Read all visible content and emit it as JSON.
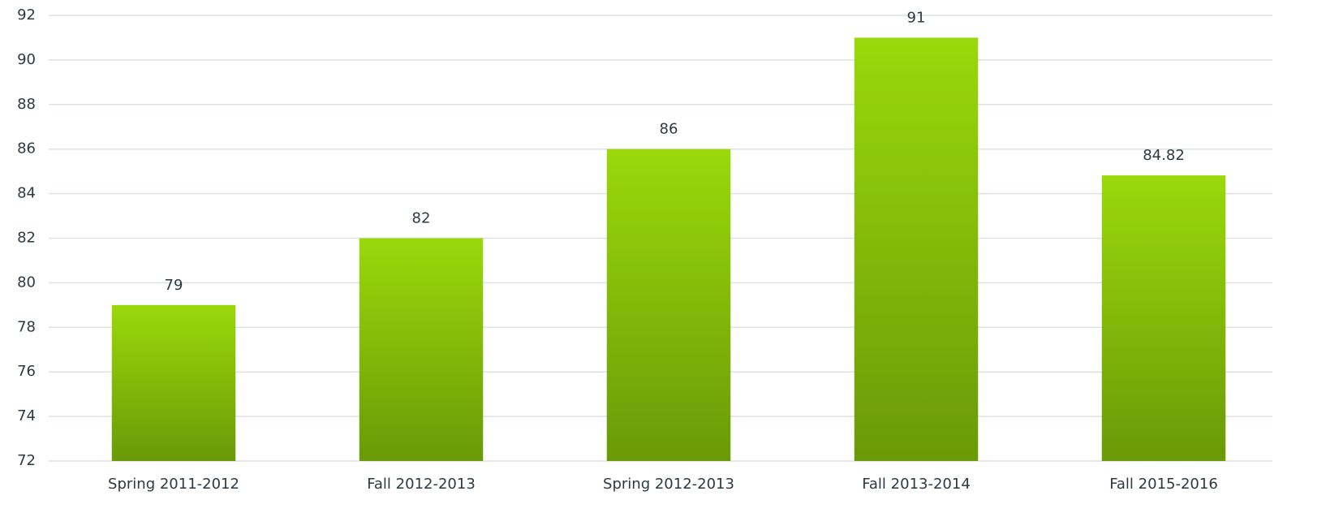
{
  "chart_data": {
    "type": "bar",
    "categories": [
      "Spring 2011-2012",
      "Fall 2012-2013",
      "Spring 2012-2013",
      "Fall 2013-2014",
      "Fall 2015-2016"
    ],
    "values": [
      79,
      82,
      86,
      91,
      84.82
    ],
    "color": [
      "#9bd80b",
      "#699a07"
    ],
    "ylim": [
      72,
      92
    ],
    "yticks": [
      72,
      74,
      76,
      78,
      80,
      82,
      84,
      86,
      88,
      90,
      92
    ],
    "grid": true
  }
}
